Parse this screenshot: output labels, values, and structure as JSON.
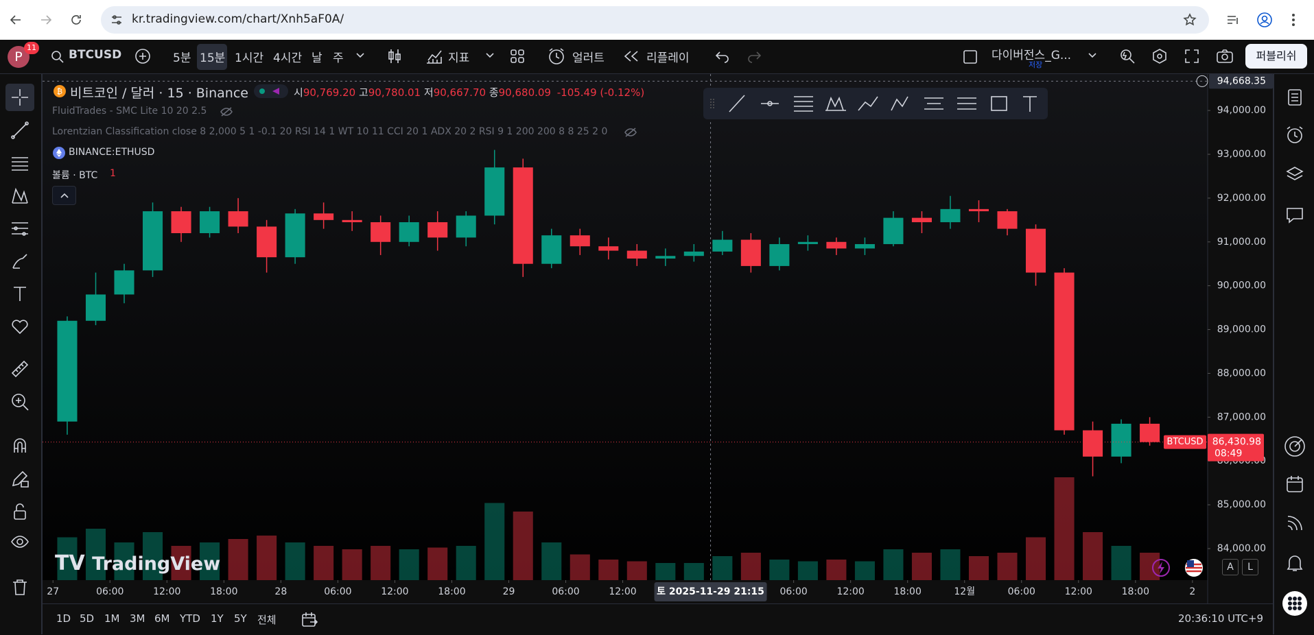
{
  "browser": {
    "url": "kr.tradingview.com/chart/Xnh5aF0A/"
  },
  "toolbar": {
    "avatar": "P",
    "badge": "11",
    "symbol": "BTCUSD",
    "intervals": [
      "5분",
      "15분",
      "1시간",
      "4시간",
      "날",
      "주"
    ],
    "indicators": "지표",
    "alert": "얼러트",
    "replay": "리플레이",
    "layout_name": "다이버전스_G...",
    "layout_status": "저장",
    "publish": "퍼블리쉬"
  },
  "legend": {
    "title": "비트코인 / 달러 · 15 · Binance",
    "o_label": "시",
    "open": "90,769.20",
    "h_label": "고",
    "high": "90,780.01",
    "l_label": "저",
    "low": "90,667.70",
    "c_label": "종",
    "close": "90,680.09",
    "change": "-105.49 (-0.12%)",
    "indicators": [
      "FluidTrades - SMC Lite 10 20 2.5",
      "Lorentzian Classification close 8 2,000 5 1 -0.1 20 RSI 14 1 WT 10 11 CCI 20 1 ADX 20 2 RSI 9 1 200 200 8 8 25 2 0"
    ],
    "compare": "BINANCE:ETHUSD",
    "volume_label": "볼륨 · BTC",
    "volume_value": "1"
  },
  "watermark": "TradingView",
  "scale_buttons": [
    "A",
    "L"
  ],
  "bottom": {
    "ranges": [
      "1D",
      "5D",
      "1M",
      "3M",
      "6M",
      "YTD",
      "1Y",
      "5Y",
      "전체"
    ],
    "clock": "20:36:10 UTC+9"
  },
  "chart_data": {
    "type": "candlestick",
    "up_color": "#089981",
    "down_color": "#f23645",
    "x": [
      1.5,
      4.5,
      7.5,
      10.5,
      13.5,
      16.5,
      19.5,
      22.5,
      25.5,
      28.5,
      31.5,
      34.5,
      37.5,
      40.5,
      43.5,
      46.5,
      49.5,
      52.5,
      55.5,
      58.5,
      61.5,
      64.5,
      67.5,
      70.5,
      73.5,
      76.5,
      79.5,
      82.5,
      85.5,
      88.5,
      91.5,
      94.5,
      97.5,
      100.5,
      103.5,
      106.5,
      109.5,
      112.5,
      115.5
    ],
    "open": [
      86900,
      89200,
      89800,
      90350,
      91700,
      91200,
      91700,
      91350,
      90650,
      91650,
      91500,
      91450,
      91000,
      91450,
      91100,
      91600,
      92700,
      90500,
      91150,
      90900,
      90800,
      90620,
      90680,
      90780,
      91050,
      90450,
      90950,
      91000,
      90850,
      90950,
      91550,
      91450,
      91750,
      91700,
      91300,
      90300,
      86700,
      86100,
      86850
    ],
    "high": [
      89300,
      90300,
      90500,
      91900,
      91800,
      91800,
      92000,
      91500,
      91750,
      91900,
      91700,
      91600,
      91600,
      91700,
      91700,
      93100,
      92900,
      91300,
      91300,
      91100,
      90950,
      90850,
      90950,
      91250,
      91200,
      91100,
      91150,
      91100,
      91100,
      91700,
      91700,
      92050,
      91950,
      91750,
      91400,
      90400,
      86900,
      86950,
      87000
    ],
    "low": [
      86600,
      89100,
      89600,
      90200,
      91000,
      91100,
      91200,
      90300,
      90500,
      91300,
      91250,
      90700,
      90900,
      90800,
      90900,
      91400,
      90200,
      90400,
      90700,
      90600,
      90450,
      90450,
      90550,
      90700,
      90300,
      90350,
      90800,
      90700,
      90700,
      90900,
      91200,
      91300,
      91450,
      91150,
      90000,
      86600,
      85650,
      85950,
      86350
    ],
    "close": [
      89200,
      89800,
      90350,
      91700,
      91200,
      91700,
      91350,
      90650,
      91650,
      91500,
      91450,
      91000,
      91450,
      91100,
      91600,
      92700,
      90500,
      91150,
      90900,
      90800,
      90620,
      90680,
      90780,
      91050,
      90450,
      90950,
      91000,
      90850,
      90950,
      91550,
      91450,
      91750,
      91700,
      91300,
      90300,
      86700,
      86100,
      86850,
      86431
    ],
    "volume": [
      25,
      30,
      22,
      28,
      20,
      22,
      24,
      26,
      22,
      20,
      18,
      20,
      18,
      19,
      20,
      45,
      40,
      22,
      15,
      12,
      11,
      10,
      10,
      14,
      16,
      12,
      11,
      12,
      11,
      18,
      16,
      18,
      14,
      16,
      25,
      60,
      28,
      20,
      16
    ],
    "xlim": [
      -1.1,
      121.6
    ],
    "ylim": [
      83280,
      94800
    ],
    "yticks": [
      {
        "value": 94000,
        "label": "94,000.00"
      },
      {
        "value": 93000,
        "label": "93,000.00"
      },
      {
        "value": 92000,
        "label": "92,000.00"
      },
      {
        "value": 91000,
        "label": "91,000.00"
      },
      {
        "value": 90000,
        "label": "90,000.00"
      },
      {
        "value": 89000,
        "label": "89,000.00"
      },
      {
        "value": 88000,
        "label": "88,000.00"
      },
      {
        "value": 87000,
        "label": "87,000.00"
      },
      {
        "value": 86000,
        "label": "86,000.00"
      },
      {
        "value": 85000,
        "label": "85,000.00"
      },
      {
        "value": 84000,
        "label": "84,000.00"
      }
    ],
    "xticks": [
      {
        "value": 0,
        "label": "27"
      },
      {
        "value": 6,
        "label": "06:00"
      },
      {
        "value": 12,
        "label": "12:00"
      },
      {
        "value": 18,
        "label": "18:00"
      },
      {
        "value": 24,
        "label": "28"
      },
      {
        "value": 30,
        "label": "06:00"
      },
      {
        "value": 36,
        "label": "12:00"
      },
      {
        "value": 42,
        "label": "18:00"
      },
      {
        "value": 48,
        "label": "29"
      },
      {
        "value": 54,
        "label": "06:00"
      },
      {
        "value": 60,
        "label": "12:00"
      },
      {
        "value": 78,
        "label": "06:00"
      },
      {
        "value": 84,
        "label": "12:00"
      },
      {
        "value": 90,
        "label": "18:00"
      },
      {
        "value": 96,
        "label": "12월"
      },
      {
        "value": 102,
        "label": "06:00"
      },
      {
        "value": 108,
        "label": "12:00"
      },
      {
        "value": 114,
        "label": "18:00"
      },
      {
        "value": 120,
        "label": "2"
      }
    ],
    "last_price": {
      "value": 86430.98,
      "label": "86,430.98"
    },
    "countdown": "08:49",
    "crosshair": {
      "price": {
        "value": 94668.35,
        "label": "94,668.35"
      },
      "time": {
        "value": 69.25,
        "label": "토 2025-11-29  21:15"
      }
    }
  }
}
